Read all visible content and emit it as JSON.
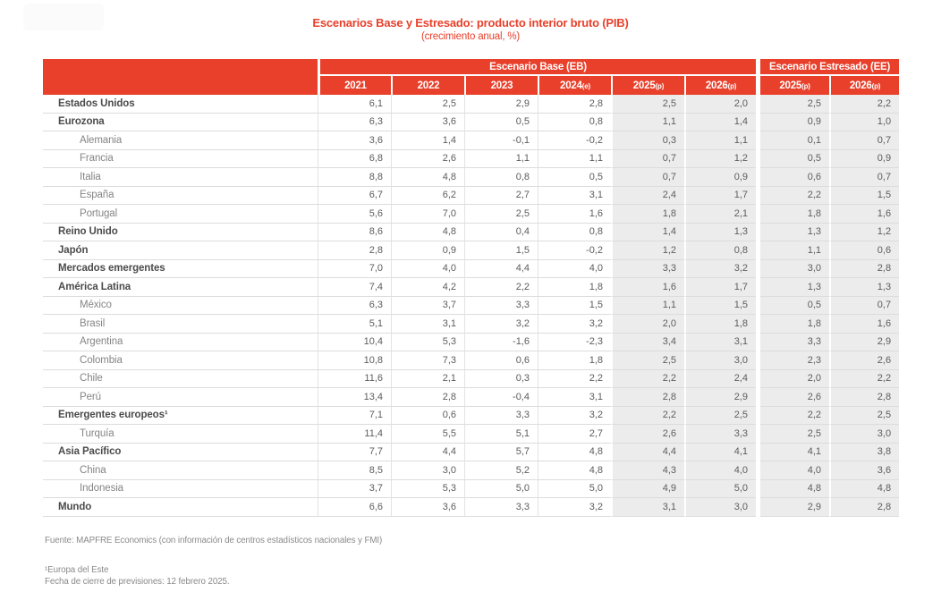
{
  "page": {
    "title": "Escenarios Base y Estresado: producto interior bruto (PIB)",
    "subtitle": "(crecimiento anual, %)"
  },
  "colors": {
    "accent_red": "#E8402B",
    "shaded_column_bg": "#ECECEC",
    "row_border": "#DCDCDC"
  },
  "table": {
    "group_headers": {
      "base": "Escenario Base (EB)",
      "stressed": "Escenario Estresado (EE)"
    },
    "eb_columns": [
      {
        "year": "2021",
        "suffix": ""
      },
      {
        "year": "2022",
        "suffix": ""
      },
      {
        "year": "2023",
        "suffix": ""
      },
      {
        "year": "2024",
        "suffix": "(e)"
      },
      {
        "year": "2025",
        "suffix": "(p)"
      },
      {
        "year": "2026",
        "suffix": "(p)"
      }
    ],
    "ee_columns": [
      {
        "year": "2025",
        "suffix": "(p)"
      },
      {
        "year": "2026",
        "suffix": "(p)"
      }
    ],
    "rows": [
      {
        "label": "Estados Unidos",
        "level": 0,
        "bold": true,
        "eb": [
          "6,1",
          "2,5",
          "2,9",
          "2,8",
          "2,5",
          "2,0"
        ],
        "ee": [
          "2,5",
          "2,2"
        ]
      },
      {
        "label": "Eurozona",
        "level": 0,
        "bold": true,
        "eb": [
          "6,3",
          "3,6",
          "0,5",
          "0,8",
          "1,1",
          "1,4"
        ],
        "ee": [
          "0,9",
          "1,0"
        ]
      },
      {
        "label": "Alemania",
        "level": 1,
        "bold": false,
        "eb": [
          "3,6",
          "1,4",
          "-0,1",
          "-0,2",
          "0,3",
          "1,1"
        ],
        "ee": [
          "0,1",
          "0,7"
        ]
      },
      {
        "label": "Francia",
        "level": 1,
        "bold": false,
        "eb": [
          "6,8",
          "2,6",
          "1,1",
          "1,1",
          "0,7",
          "1,2"
        ],
        "ee": [
          "0,5",
          "0,9"
        ]
      },
      {
        "label": "Italia",
        "level": 1,
        "bold": false,
        "eb": [
          "8,8",
          "4,8",
          "0,8",
          "0,5",
          "0,7",
          "0,9"
        ],
        "ee": [
          "0,6",
          "0,7"
        ]
      },
      {
        "label": "España",
        "level": 1,
        "bold": false,
        "eb": [
          "6,7",
          "6,2",
          "2,7",
          "3,1",
          "2,4",
          "1,7"
        ],
        "ee": [
          "2,2",
          "1,5"
        ]
      },
      {
        "label": "Portugal",
        "level": 1,
        "bold": false,
        "eb": [
          "5,6",
          "7,0",
          "2,5",
          "1,6",
          "1,8",
          "2,1"
        ],
        "ee": [
          "1,8",
          "1,6"
        ]
      },
      {
        "label": "Reino Unido",
        "level": 0,
        "bold": true,
        "eb": [
          "8,6",
          "4,8",
          "0,4",
          "0,8",
          "1,4",
          "1,3"
        ],
        "ee": [
          "1,3",
          "1,2"
        ]
      },
      {
        "label": "Japón",
        "level": 0,
        "bold": true,
        "eb": [
          "2,8",
          "0,9",
          "1,5",
          "-0,2",
          "1,2",
          "0,8"
        ],
        "ee": [
          "1,1",
          "0,6"
        ]
      },
      {
        "label": "Mercados emergentes",
        "level": 0,
        "bold": true,
        "eb": [
          "7,0",
          "4,0",
          "4,4",
          "4,0",
          "3,3",
          "3,2"
        ],
        "ee": [
          "3,0",
          "2,8"
        ]
      },
      {
        "label": "América Latina",
        "level": 0,
        "bold": true,
        "eb": [
          "7,4",
          "4,2",
          "2,2",
          "1,8",
          "1,6",
          "1,7"
        ],
        "ee": [
          "1,3",
          "1,3"
        ]
      },
      {
        "label": "México",
        "level": 1,
        "bold": false,
        "eb": [
          "6,3",
          "3,7",
          "3,3",
          "1,5",
          "1,1",
          "1,5"
        ],
        "ee": [
          "0,5",
          "0,7"
        ]
      },
      {
        "label": "Brasil",
        "level": 1,
        "bold": false,
        "eb": [
          "5,1",
          "3,1",
          "3,2",
          "3,2",
          "2,0",
          "1,8"
        ],
        "ee": [
          "1,8",
          "1,6"
        ]
      },
      {
        "label": "Argentina",
        "level": 1,
        "bold": false,
        "eb": [
          "10,4",
          "5,3",
          "-1,6",
          "-2,3",
          "3,4",
          "3,1"
        ],
        "ee": [
          "3,3",
          "2,9"
        ]
      },
      {
        "label": "Colombia",
        "level": 1,
        "bold": false,
        "eb": [
          "10,8",
          "7,3",
          "0,6",
          "1,8",
          "2,5",
          "3,0"
        ],
        "ee": [
          "2,3",
          "2,6"
        ]
      },
      {
        "label": "Chile",
        "level": 1,
        "bold": false,
        "eb": [
          "11,6",
          "2,1",
          "0,3",
          "2,2",
          "2,2",
          "2,4"
        ],
        "ee": [
          "2,0",
          "2,2"
        ]
      },
      {
        "label": "Perú",
        "level": 1,
        "bold": false,
        "eb": [
          "13,4",
          "2,8",
          "-0,4",
          "3,1",
          "2,8",
          "2,9"
        ],
        "ee": [
          "2,6",
          "2,8"
        ]
      },
      {
        "label": "Emergentes europeos¹",
        "level": 0,
        "bold": true,
        "eb": [
          "7,1",
          "0,6",
          "3,3",
          "3,2",
          "2,2",
          "2,5"
        ],
        "ee": [
          "2,2",
          "2,5"
        ]
      },
      {
        "label": "Turquía",
        "level": 1,
        "bold": false,
        "eb": [
          "11,4",
          "5,5",
          "5,1",
          "2,7",
          "2,6",
          "3,3"
        ],
        "ee": [
          "2,5",
          "3,0"
        ]
      },
      {
        "label": "Asia Pacífico",
        "level": 0,
        "bold": true,
        "eb": [
          "7,7",
          "4,4",
          "5,7",
          "4,8",
          "4,4",
          "4,1"
        ],
        "ee": [
          "4,1",
          "3,8"
        ]
      },
      {
        "label": "China",
        "level": 1,
        "bold": false,
        "eb": [
          "8,5",
          "3,0",
          "5,2",
          "4,8",
          "4,3",
          "4,0"
        ],
        "ee": [
          "4,0",
          "3,6"
        ]
      },
      {
        "label": "Indonesia",
        "level": 1,
        "bold": false,
        "eb": [
          "3,7",
          "5,3",
          "5,0",
          "5,0",
          "4,9",
          "5,0"
        ],
        "ee": [
          "4,8",
          "4,8"
        ]
      },
      {
        "label": "Mundo",
        "level": 0,
        "bold": true,
        "eb": [
          "6,6",
          "3,6",
          "3,3",
          "3,2",
          "3,1",
          "3,0"
        ],
        "ee": [
          "2,9",
          "2,8"
        ]
      }
    ]
  },
  "footnotes": {
    "source": "Fuente: MAPFRE Economics (con información de centros estadísticos nacionales y FMI)",
    "note1": "¹Europa del Este",
    "closing": "Fecha de cierre de previsiones: 12 febrero 2025."
  }
}
